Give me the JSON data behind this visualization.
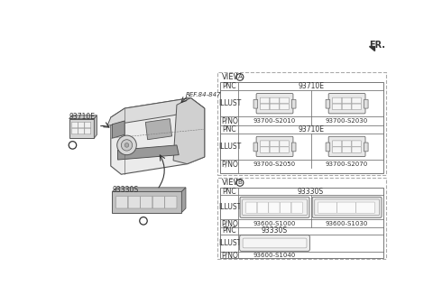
{
  "bg_color": "#ffffff",
  "fr_label": "FR.",
  "ref_label": "REF.84-847",
  "part_a_label": "93710E",
  "part_b_label": "93330S",
  "circle_a": "A",
  "circle_b": "B",
  "view_a_title": "VIEW",
  "view_a_circle": "A",
  "view_b_title": "VIEW",
  "view_b_circle": "B",
  "pnc_a1": "93710E",
  "pno_a1_l": "93700-S2010",
  "pno_a1_r": "93700-S2030",
  "pnc_a2": "93710E",
  "pno_a2_l": "93700-S2050",
  "pno_a2_r": "93700-S2070",
  "pnc_b1": "93330S",
  "pno_b1_l": "93600-S1000",
  "pno_b1_r": "93600-S1030",
  "pnc_b2": "93330S",
  "pno_b2_l": "93600-S1040",
  "line_color": "#888888",
  "text_color": "#333333",
  "dashed_color": "#aaaaaa",
  "lc": "#777777",
  "part_gray": "#c8c8c8",
  "illust_fill": "#e8e8e8",
  "btn_fill": "#f2f2f2"
}
